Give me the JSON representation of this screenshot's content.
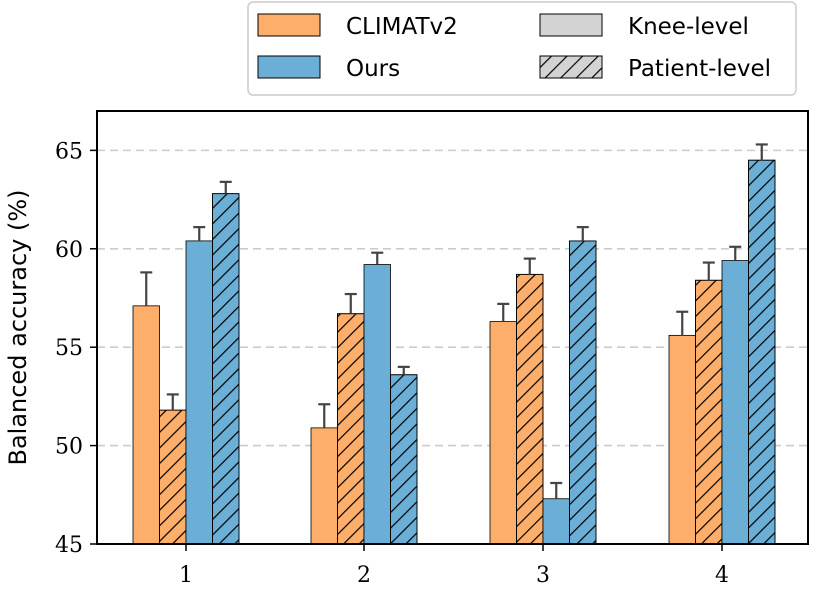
{
  "chart_data": {
    "type": "bar",
    "title": "",
    "xlabel": "",
    "ylabel": "Balanced accuracy (%)",
    "ylim": [
      45,
      67
    ],
    "yticks": [
      45,
      50,
      55,
      60,
      65
    ],
    "grid": "horizontal dashed",
    "legend_placement": "top-right (above plot)",
    "categories": [
      "1",
      "2",
      "3",
      "4"
    ],
    "series": [
      {
        "name": "CLIMATv2",
        "level": "Knee-level",
        "color": "#fdae6b",
        "hatch": false,
        "values": [
          57.1,
          50.9,
          56.3,
          55.6
        ],
        "errors": [
          1.7,
          1.2,
          0.9,
          1.2
        ]
      },
      {
        "name": "CLIMATv2",
        "level": "Patient-level",
        "color": "#fdae6b",
        "hatch": true,
        "values": [
          51.8,
          56.7,
          58.7,
          58.4
        ],
        "errors": [
          0.8,
          1.0,
          0.8,
          0.9
        ]
      },
      {
        "name": "Ours",
        "level": "Knee-level",
        "color": "#6baed6",
        "hatch": false,
        "values": [
          60.4,
          59.2,
          47.3,
          59.4
        ],
        "errors": [
          0.7,
          0.6,
          0.8,
          0.7
        ]
      },
      {
        "name": "Ours",
        "level": "Patient-level",
        "color": "#6baed6",
        "hatch": true,
        "values": [
          62.8,
          53.6,
          60.4,
          64.5
        ],
        "errors": [
          0.6,
          0.4,
          0.7,
          0.8
        ]
      }
    ],
    "legend": [
      {
        "label": "CLIMATv2",
        "color": "#fdae6b",
        "hatch": false
      },
      {
        "label": "Knee-level",
        "color": "#d3d3d3",
        "hatch": false
      },
      {
        "label": "Ours",
        "color": "#6baed6",
        "hatch": false
      },
      {
        "label": "Patient-level",
        "color": "#d3d3d3",
        "hatch": true
      }
    ]
  }
}
